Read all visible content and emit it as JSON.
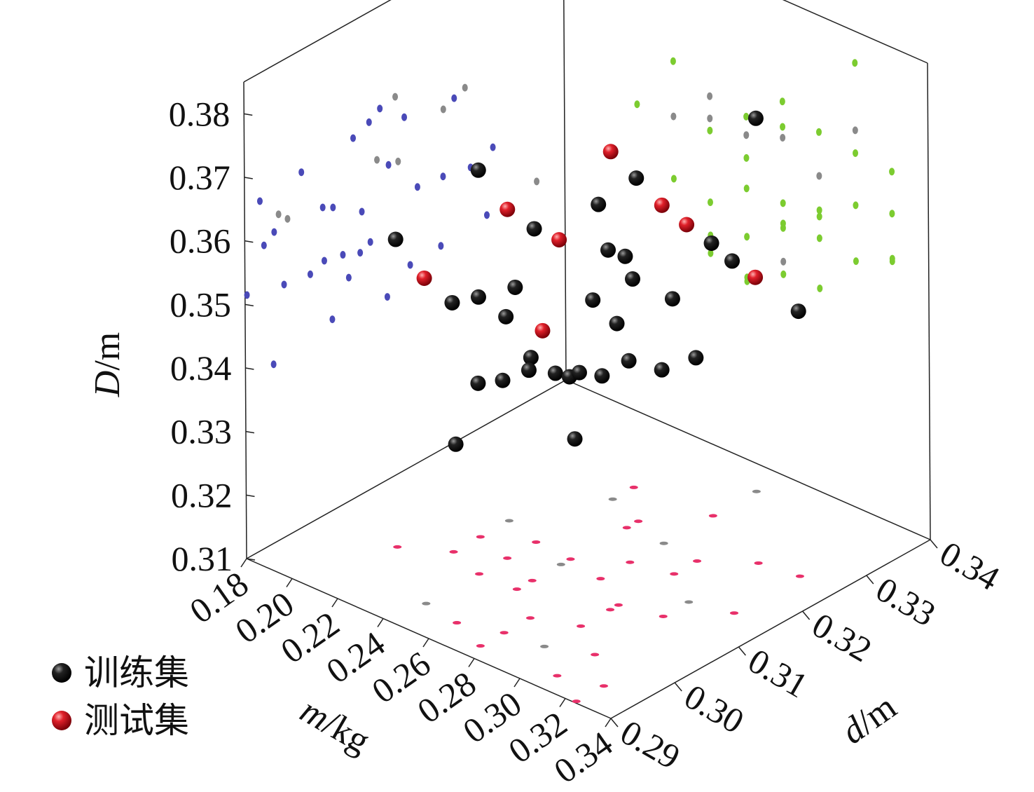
{
  "chart_data": {
    "type": "scatter3d",
    "title": "",
    "axes": {
      "x": {
        "label_var": "m",
        "label_unit": "/kg",
        "ticks": [
          "0.18",
          "0.20",
          "0.22",
          "0.24",
          "0.26",
          "0.28",
          "0.30",
          "0.32",
          "0.34"
        ],
        "range": [
          0.18,
          0.34
        ]
      },
      "y": {
        "label_var": "d",
        "label_unit": "/m",
        "ticks": [
          "0.29",
          "0.30",
          "0.31",
          "0.32",
          "0.33",
          "0.34"
        ],
        "range": [
          0.29,
          0.34
        ]
      },
      "z": {
        "label_var": "D",
        "label_unit": "/m",
        "ticks": [
          "0.31",
          "0.32",
          "0.33",
          "0.34",
          "0.35",
          "0.36",
          "0.37",
          "0.38"
        ],
        "range": [
          0.31,
          0.385
        ]
      }
    },
    "projections": true,
    "legend_position": "bottom-left",
    "colors": {
      "train": "#111111",
      "test": "#e0202a",
      "proj_m_wall": "#4a4ab8",
      "proj_d_wall": "#7ccc30",
      "proj_floor": "#e8306a",
      "proj_test": "#8a8a8a"
    },
    "series": [
      {
        "name": "训练集",
        "points": [
          [
            0.308,
            0.3245,
            0.38
          ],
          [
            0.228,
            0.3095,
            0.3677
          ],
          [
            0.26,
            0.3228,
            0.364
          ],
          [
            0.276,
            0.3112,
            0.3689
          ],
          [
            0.244,
            0.3125,
            0.3593
          ],
          [
            0.212,
            0.3022,
            0.3584
          ],
          [
            0.292,
            0.307,
            0.3666
          ],
          [
            0.26,
            0.321,
            0.3527
          ],
          [
            0.276,
            0.3288,
            0.3529
          ],
          [
            0.324,
            0.315,
            0.3654
          ],
          [
            0.244,
            0.3278,
            0.3428
          ],
          [
            0.26,
            0.3038,
            0.3575
          ],
          [
            0.276,
            0.2924,
            0.3649
          ],
          [
            0.228,
            0.3053,
            0.3492
          ],
          [
            0.308,
            0.2989,
            0.3658
          ],
          [
            0.292,
            0.317,
            0.3533
          ],
          [
            0.324,
            0.3253,
            0.3517
          ],
          [
            0.244,
            0.308,
            0.348
          ],
          [
            0.292,
            0.3083,
            0.3543
          ],
          [
            0.26,
            0.3062,
            0.3451
          ],
          [
            0.276,
            0.3002,
            0.349
          ],
          [
            0.244,
            0.3036,
            0.34
          ],
          [
            0.276,
            0.2961,
            0.3497
          ],
          [
            0.308,
            0.293,
            0.3576
          ],
          [
            0.26,
            0.3122,
            0.3387
          ],
          [
            0.292,
            0.3024,
            0.3499
          ],
          [
            0.324,
            0.2946,
            0.3588
          ],
          [
            0.276,
            0.3158,
            0.3417
          ],
          [
            0.308,
            0.3096,
            0.3488
          ],
          [
            0.292,
            0.3206,
            0.342
          ],
          [
            0.26,
            0.2944,
            0.3381
          ],
          [
            0.324,
            0.2903,
            0.3513
          ]
        ]
      },
      {
        "name": "测试集",
        "points": [
          [
            0.244,
            0.3245,
            0.3647
          ],
          [
            0.228,
            0.314,
            0.359
          ],
          [
            0.276,
            0.3211,
            0.3632
          ],
          [
            0.308,
            0.3136,
            0.3694
          ],
          [
            0.26,
            0.3107,
            0.3611
          ],
          [
            0.244,
            0.2953,
            0.3612
          ],
          [
            0.276,
            0.3356,
            0.3437
          ],
          [
            0.292,
            0.2967,
            0.3597
          ]
        ]
      }
    ]
  }
}
